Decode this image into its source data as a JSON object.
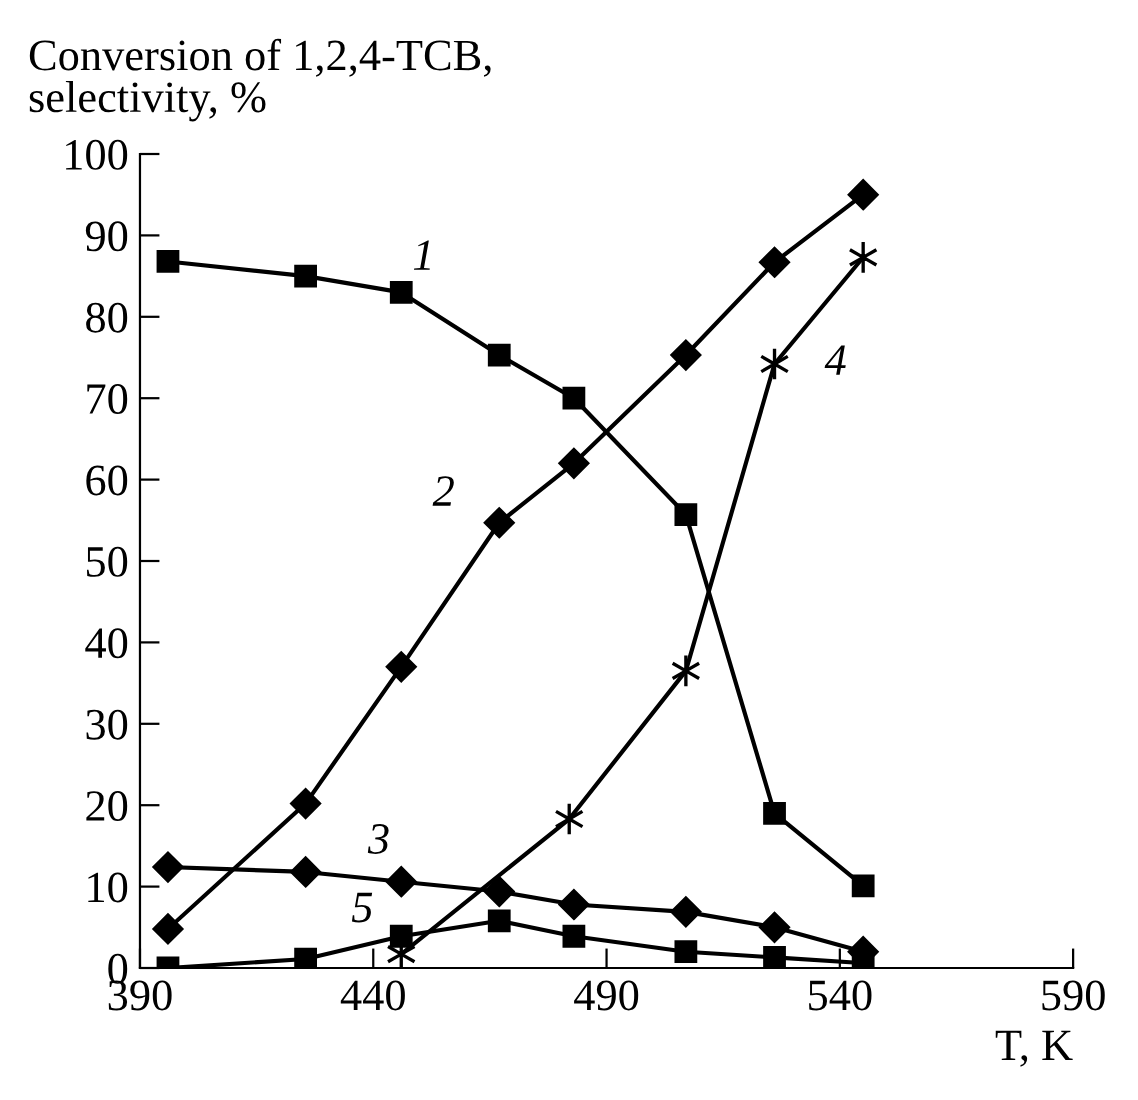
{
  "chart_data": {
    "type": "line",
    "ylabel": "Conversion of 1,2,4-TCB,\nselectivity, %",
    "xlabel": "T, K",
    "xlim": [
      390,
      590
    ],
    "xticks": [
      390,
      440,
      490,
      540,
      590
    ],
    "ylim": [
      0,
      100
    ],
    "yticks": [
      0,
      10,
      20,
      30,
      40,
      50,
      60,
      70,
      80,
      90,
      100
    ],
    "grid": false,
    "legend": false,
    "line_style": "solid",
    "series": [
      {
        "name": "1",
        "color": "#000000",
        "marker": "square",
        "x": [
          396,
          425.5,
          446,
          467,
          483,
          507,
          526,
          545
        ],
        "values": [
          86.8,
          85,
          83,
          75.3,
          70,
          55.7,
          19,
          10.1
        ]
      },
      {
        "name": "2",
        "color": "#000000",
        "marker": "diamond",
        "x": [
          396,
          425.5,
          446,
          467,
          483,
          507,
          526,
          545
        ],
        "values": [
          4.8,
          20.2,
          37,
          54.7,
          62,
          75.3,
          86.7,
          95
        ]
      },
      {
        "name": "3",
        "color": "#000000",
        "marker": "diamond",
        "x": [
          396,
          425.5,
          446,
          467,
          483,
          507,
          526,
          545
        ],
        "values": [
          12.4,
          11.8,
          10.6,
          9.4,
          7.8,
          6.9,
          5,
          2
        ]
      },
      {
        "name": "4",
        "color": "#000000",
        "marker": "cross",
        "x": [
          446,
          482,
          507,
          526,
          545
        ],
        "values": [
          1.7,
          18.3,
          36.5,
          74.2,
          87.3
        ]
      },
      {
        "name": "5",
        "color": "#000000",
        "marker": "square",
        "x": [
          396,
          425.5,
          446,
          467,
          483,
          507,
          526,
          545
        ],
        "values": [
          0,
          1.1,
          3.9,
          5.8,
          3.9,
          2.0,
          1.3,
          0.6
        ]
      }
    ]
  }
}
